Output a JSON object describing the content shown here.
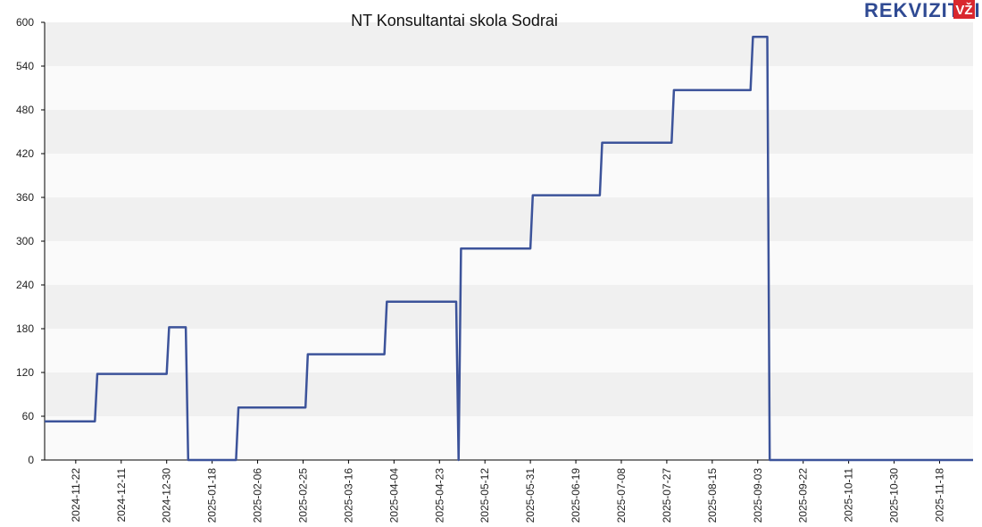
{
  "logo": {
    "text": "REKVIZITAI",
    "badge": "VŽ",
    "badge_color": "#d9272e",
    "text_color": "#2f4a93"
  },
  "colors": {
    "line": "#3c539a",
    "band_dark": "#f0f0f0",
    "band_light": "#fafafa",
    "axis": "#000000"
  },
  "chart_data": {
    "type": "line",
    "title": "NT Konsultantai skola Sodrai",
    "xlabel": "",
    "ylabel": "",
    "ylim": [
      0,
      600
    ],
    "yticks": [
      0,
      60,
      120,
      180,
      240,
      300,
      360,
      420,
      480,
      540,
      600
    ],
    "xlim": [
      "2024-11-09",
      "2025-12-02"
    ],
    "xticks": [
      "2024-11-22",
      "2024-12-11",
      "2024-12-30",
      "2025-01-18",
      "2025-02-06",
      "2025-02-25",
      "2025-03-16",
      "2025-04-04",
      "2025-04-23",
      "2025-05-12",
      "2025-05-31",
      "2025-06-19",
      "2025-07-08",
      "2025-07-27",
      "2025-08-15",
      "2025-09-03",
      "2025-09-22",
      "2025-10-11",
      "2025-10-30",
      "2025-11-18"
    ],
    "grid": true,
    "legend": "none",
    "series": [
      {
        "points": [
          [
            "2024-11-09",
            53
          ],
          [
            "2024-11-30",
            53
          ],
          [
            "2024-12-01",
            118
          ],
          [
            "2024-12-30",
            118
          ],
          [
            "2024-12-31",
            182
          ],
          [
            "2025-01-07",
            182
          ],
          [
            "2025-01-08",
            0
          ],
          [
            "2025-01-28",
            0
          ],
          [
            "2025-01-29",
            72
          ],
          [
            "2025-02-26",
            72
          ],
          [
            "2025-02-27",
            145
          ],
          [
            "2025-03-31",
            145
          ],
          [
            "2025-04-01",
            217
          ],
          [
            "2025-04-30",
            217
          ],
          [
            "2025-05-01",
            0
          ],
          [
            "2025-05-01",
            0
          ],
          [
            "2025-05-02",
            290
          ],
          [
            "2025-05-31",
            290
          ],
          [
            "2025-06-01",
            363
          ],
          [
            "2025-06-29",
            363
          ],
          [
            "2025-06-30",
            435
          ],
          [
            "2025-07-29",
            435
          ],
          [
            "2025-07-30",
            507
          ],
          [
            "2025-08-31",
            507
          ],
          [
            "2025-09-01",
            580
          ],
          [
            "2025-09-07",
            580
          ],
          [
            "2025-09-08",
            0
          ],
          [
            "2025-12-02",
            0
          ]
        ]
      }
    ]
  }
}
